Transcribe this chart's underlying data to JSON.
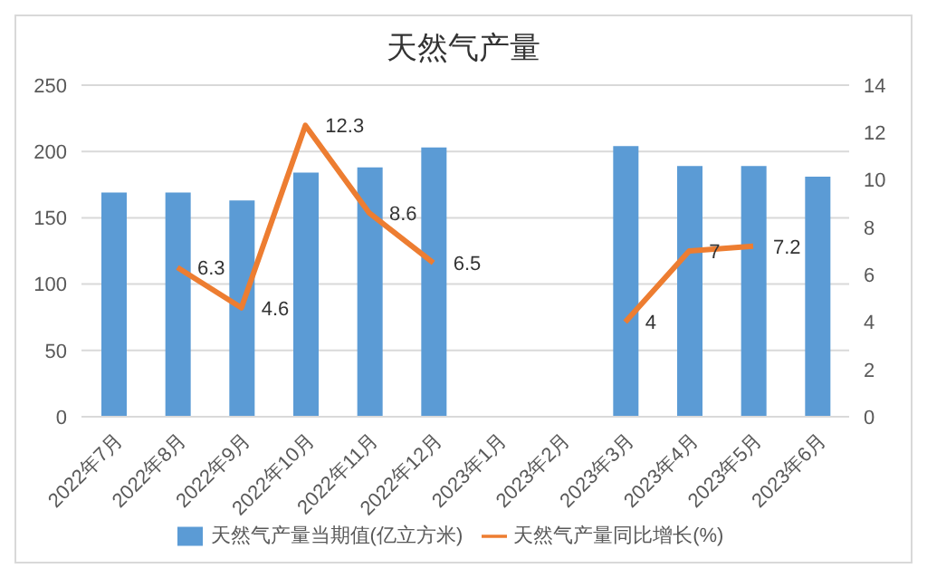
{
  "chart_data": {
    "type": "bar",
    "title": "天然气产量",
    "categories": [
      "2022年7月",
      "2022年8月",
      "2022年9月",
      "2022年10月",
      "2022年11月",
      "2022年12月",
      "2023年1月",
      "2023年2月",
      "2023年3月",
      "2023年4月",
      "2023年5月",
      "2023年6月"
    ],
    "series": [
      {
        "name": "天然气产量当期值(亿立方米)",
        "color": "#5b9bd5",
        "values": [
          169,
          169,
          163,
          184,
          188,
          203,
          null,
          null,
          204,
          189,
          189,
          181
        ]
      },
      {
        "name": "天然气产量同比增长(%)",
        "type": "line",
        "axis": "y2",
        "color": "#ed7d31",
        "values": [
          null,
          6.3,
          4.6,
          12.3,
          8.6,
          6.5,
          null,
          null,
          4,
          7,
          7.2,
          null
        ],
        "value_labels": [
          null,
          "6.3",
          "4.6",
          "12.3",
          "8.6",
          "6.5",
          null,
          null,
          "4",
          "7",
          "7.2",
          null
        ]
      }
    ],
    "ylim": [
      0,
      250
    ],
    "yticks": [
      0,
      50,
      100,
      150,
      200,
      250
    ],
    "y2lim": [
      0,
      14
    ],
    "y2ticks": [
      0,
      2,
      4,
      6,
      8,
      10,
      12,
      14
    ],
    "grid": "y",
    "legend": "bottom",
    "marker": "none"
  }
}
